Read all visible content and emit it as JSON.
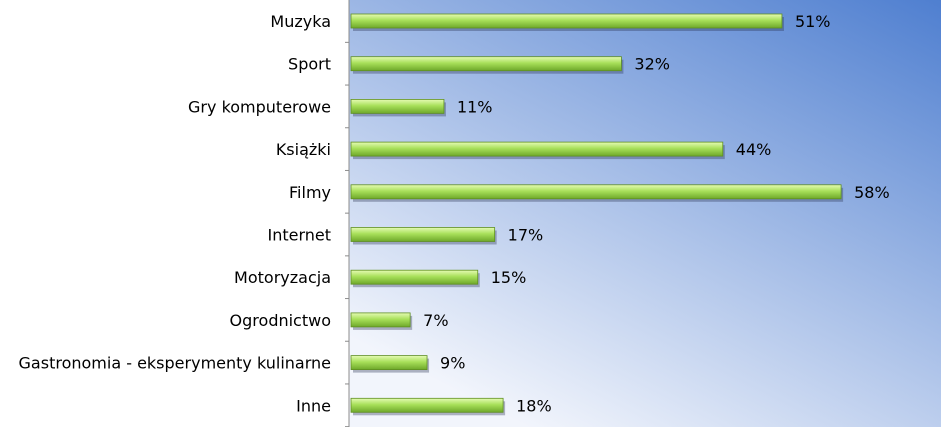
{
  "chart_data": {
    "type": "bar",
    "orientation": "horizontal",
    "title": "",
    "xlabel": "",
    "ylabel": "",
    "xlim": [
      0,
      100
    ],
    "grid": false,
    "legend": "none",
    "categories": [
      "Muzyka",
      "Sport",
      "Gry komputerowe",
      "Książki",
      "Filmy",
      "Internet",
      "Motoryzacja",
      "Ogrodnictwo",
      "Gastronomia - eksperymenty kulinarne",
      "Inne"
    ],
    "values": [
      51,
      32,
      11,
      44,
      58,
      17,
      15,
      7,
      9,
      18
    ],
    "value_labels": [
      "51%",
      "32%",
      "11%",
      "44%",
      "58%",
      "17%",
      "15%",
      "7%",
      "9%",
      "18%"
    ],
    "colors": {
      "bar_light": "#e6fbb4",
      "bar_mid": "#a8e05a",
      "bar_dark": "#6ea82a",
      "plot_bg_top": "#4f7fd0",
      "plot_bg_bottom": "#f2f5fc"
    }
  }
}
